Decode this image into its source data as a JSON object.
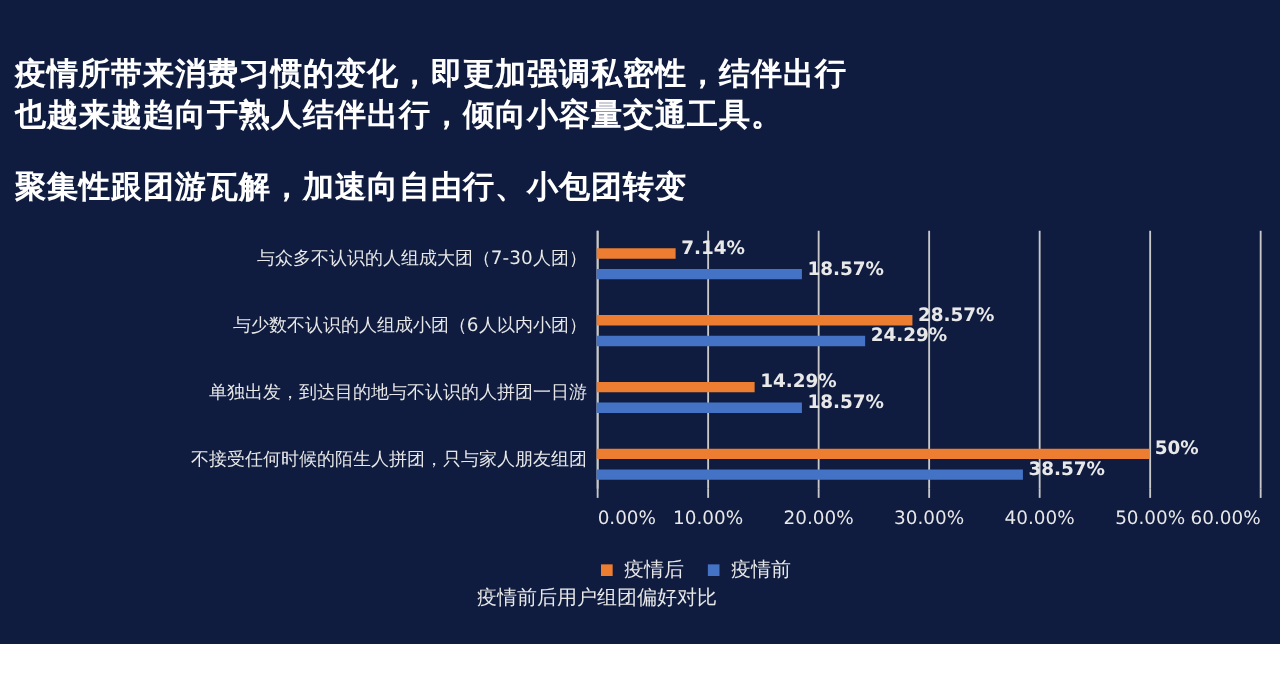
{
  "chart_data": {
    "type": "bar",
    "orientation": "horizontal",
    "title": "疫情所带来消费习惯的变化，即更加强调私密性，结伴出行也越来越趋向于熟人结伴出行，倾向小容量交通工具。",
    "subtitle": "聚集性跟团游瓦解，加速向自由行、小包团转变",
    "categories": [
      "与众多不认识的人组成大团（7-30人团）",
      "与少数不认识的人组成小团（6人以内小团）",
      "单独出发，到达目的地与不认识的人拼团一日游",
      "不接受任何时候的陌生人拼团，只与家人朋友组团"
    ],
    "series": [
      {
        "name": "疫情后",
        "color": "#ed7d31",
        "values": [
          7.14,
          28.57,
          14.29,
          50
        ],
        "value_labels": [
          "7.14%",
          "28.57%",
          "14.29%",
          "50%"
        ]
      },
      {
        "name": "疫情前",
        "color": "#4472c4",
        "values": [
          18.57,
          24.29,
          18.57,
          38.57
        ],
        "value_labels": [
          "18.57%",
          "24.29%",
          "18.57%",
          "38.57%"
        ]
      }
    ],
    "xlim": [
      0,
      60
    ],
    "xticks": [
      {
        "value": 0,
        "label": "0.00%"
      },
      {
        "value": 10,
        "label": "10.00%"
      },
      {
        "value": 20,
        "label": "20.00%"
      },
      {
        "value": 30,
        "label": "30.00%"
      },
      {
        "value": 40,
        "label": "40.00%"
      },
      {
        "value": 50,
        "label": "50.00%"
      },
      {
        "value": 60,
        "label": "60.00%"
      }
    ],
    "grid": "x",
    "legend": "bottom",
    "annotations": [
      "疫情前后用户组团偏好对比"
    ]
  }
}
